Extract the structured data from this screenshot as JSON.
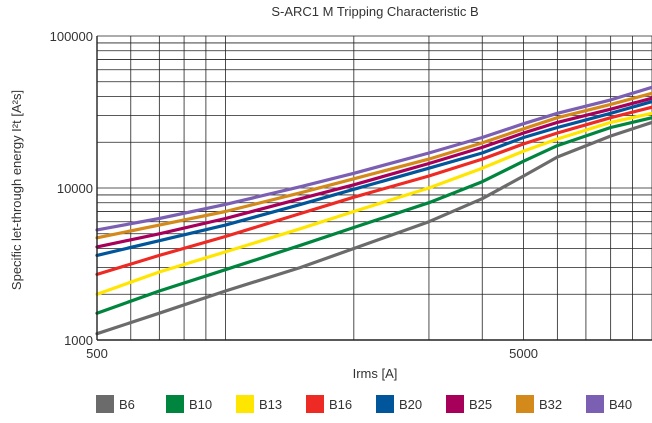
{
  "chart_data": {
    "type": "line",
    "title": "S-ARC1 M Tripping Characteristic B",
    "xlabel": "Irms [A]",
    "ylabel": "Specific let-through energy I²t [A²s]",
    "x_scale": "log",
    "y_scale": "log",
    "xlim": [
      500,
      10000
    ],
    "ylim": [
      1000,
      100000
    ],
    "x_ticks": [
      {
        "value": 500,
        "label": "500"
      },
      {
        "value": 5000,
        "label": "5000"
      }
    ],
    "y_ticks": [
      {
        "value": 1000,
        "label": "1000"
      },
      {
        "value": 10000,
        "label": "10000"
      },
      {
        "value": 100000,
        "label": "100000"
      }
    ],
    "grid": true,
    "legend_position": "bottom",
    "series": [
      {
        "name": "B6",
        "color": "#6b6b6b",
        "x": [
          500,
          700,
          1000,
          1500,
          2000,
          3000,
          4000,
          5000,
          6000,
          8000,
          10000
        ],
        "y": [
          1100,
          1500,
          2100,
          3000,
          4000,
          6000,
          8500,
          12000,
          16000,
          22000,
          27000
        ]
      },
      {
        "name": "B10",
        "color": "#00853f",
        "x": [
          500,
          700,
          1000,
          1500,
          2000,
          3000,
          4000,
          5000,
          6000,
          8000,
          10000
        ],
        "y": [
          1500,
          2100,
          2900,
          4200,
          5500,
          8000,
          11000,
          15000,
          19000,
          25000,
          29000
        ]
      },
      {
        "name": "B13",
        "color": "#ffe600",
        "x": [
          500,
          700,
          1000,
          1500,
          2000,
          3000,
          4000,
          5000,
          6000,
          8000,
          10000
        ],
        "y": [
          2000,
          2800,
          3800,
          5400,
          7000,
          10000,
          13500,
          17500,
          21000,
          27000,
          31000
        ]
      },
      {
        "name": "B16",
        "color": "#ee2a24",
        "x": [
          500,
          700,
          1000,
          1500,
          2000,
          3000,
          4000,
          5000,
          6000,
          8000,
          10000
        ],
        "y": [
          2700,
          3600,
          4800,
          6800,
          8700,
          12000,
          15500,
          19500,
          23000,
          29000,
          34000
        ]
      },
      {
        "name": "B20",
        "color": "#00559b",
        "x": [
          500,
          700,
          1000,
          1500,
          2000,
          3000,
          4000,
          5000,
          6000,
          8000,
          10000
        ],
        "y": [
          3600,
          4500,
          5700,
          7800,
          9800,
          13500,
          17000,
          21500,
          25000,
          31000,
          37000
        ]
      },
      {
        "name": "B25",
        "color": "#a6005b",
        "x": [
          500,
          700,
          1000,
          1500,
          2000,
          3000,
          4000,
          5000,
          6000,
          8000,
          10000
        ],
        "y": [
          4100,
          5000,
          6300,
          8500,
          10500,
          14500,
          18500,
          23000,
          27000,
          33000,
          39000
        ]
      },
      {
        "name": "B32",
        "color": "#d4891b",
        "x": [
          500,
          700,
          1000,
          1500,
          2000,
          3000,
          4000,
          5000,
          6000,
          8000,
          10000
        ],
        "y": [
          4700,
          5700,
          7000,
          9300,
          11500,
          15500,
          19800,
          24500,
          29000,
          35500,
          42000
        ]
      },
      {
        "name": "B40",
        "color": "#7b5fb3",
        "x": [
          500,
          700,
          1000,
          1500,
          2000,
          3000,
          4000,
          5000,
          6000,
          8000,
          10000
        ],
        "y": [
          5300,
          6300,
          7800,
          10200,
          12500,
          17000,
          21500,
          26500,
          31000,
          38000,
          46000
        ]
      }
    ]
  }
}
